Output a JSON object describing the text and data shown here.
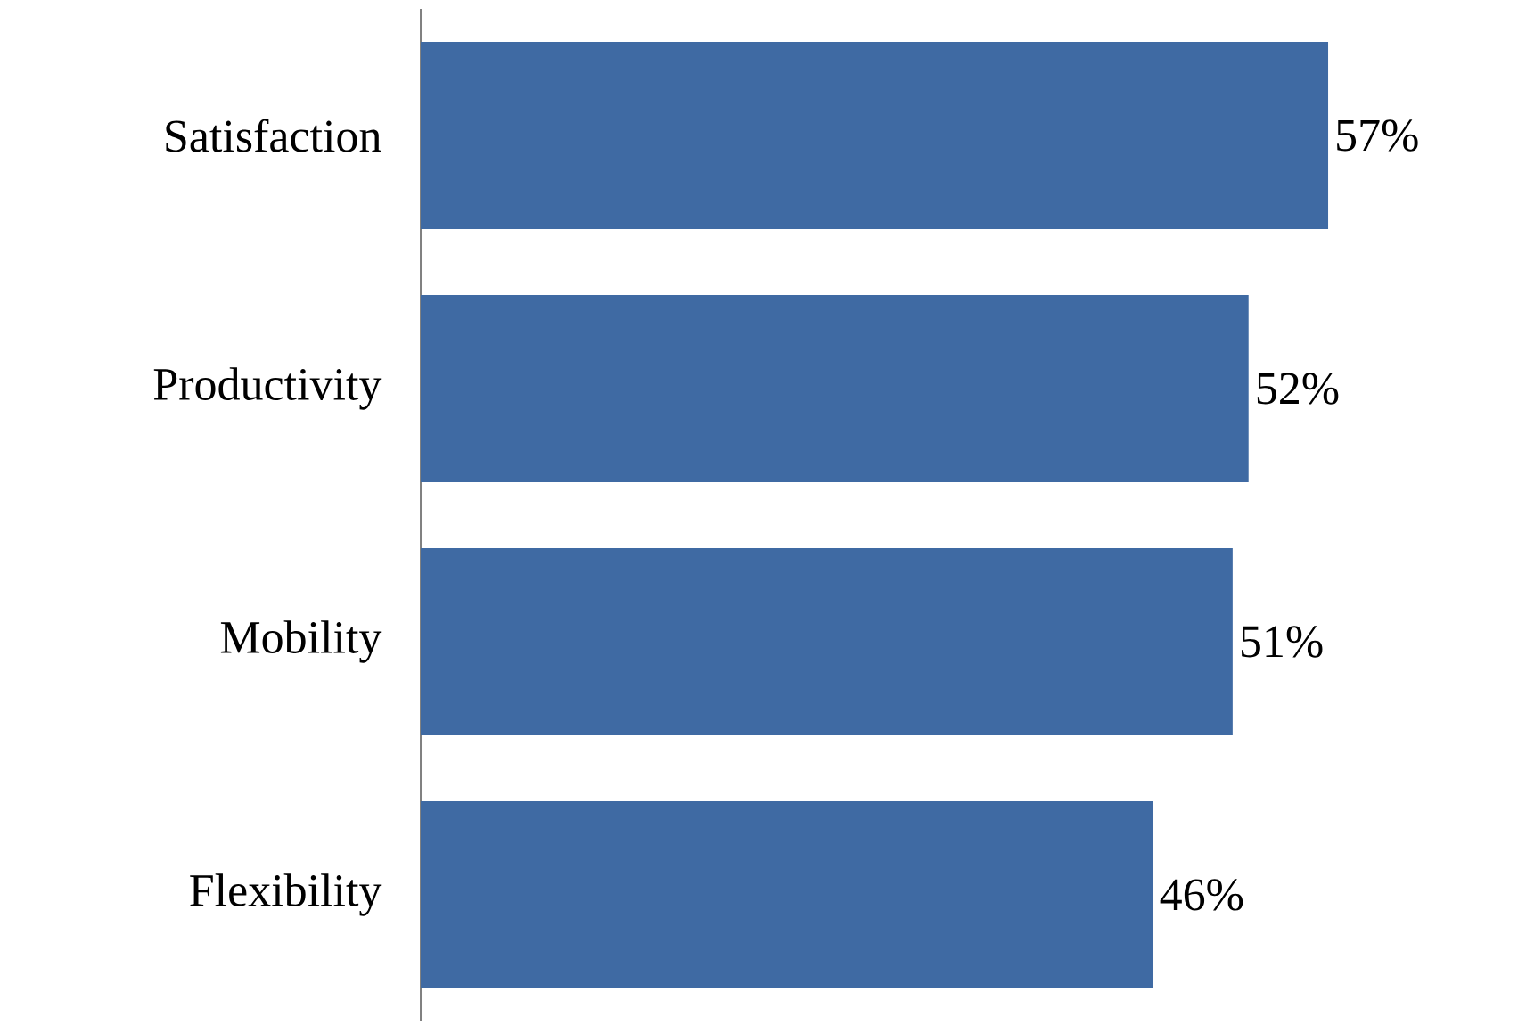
{
  "chart_data": {
    "type": "bar",
    "orientation": "horizontal",
    "categories": [
      "Satisfaction",
      "Productivity",
      "Mobility",
      "Flexibility"
    ],
    "values": [
      57,
      52,
      51,
      46
    ],
    "value_labels": [
      "57%",
      "52%",
      "51%",
      "46%"
    ],
    "color": "#3f6aa3"
  }
}
